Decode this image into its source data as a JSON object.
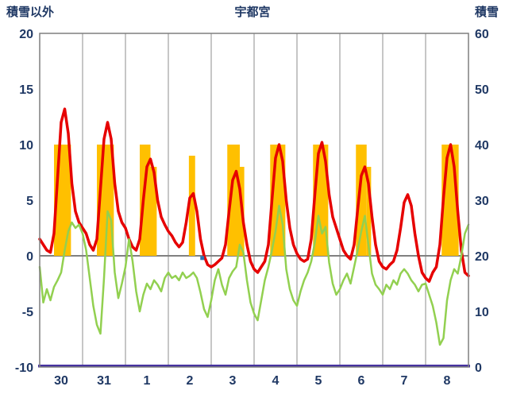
{
  "header": {
    "left_axis_title": "積雪以外",
    "title": "宇都宮",
    "right_axis_title": "積雪"
  },
  "colors": {
    "bar": "#FFC000",
    "temperature_line": "#E60000",
    "green_line": "#92D050",
    "snow_line": "#4733A0",
    "marker": "#2E75B6",
    "grid": "#8C8C8C",
    "zero_line": "#808080",
    "border": "#7F7F7F",
    "axis_text": "#1F3864",
    "background": "#FFFFFF"
  },
  "chart_data": {
    "type": "line",
    "title": "宇都宮",
    "left_axis": {
      "label": "積雪以外",
      "min": -10,
      "max": 20,
      "ticks": [
        20,
        15,
        10,
        5,
        0,
        -5,
        -10
      ]
    },
    "right_axis": {
      "label": "積雪",
      "min": 0,
      "max": 60,
      "ticks": [
        60,
        50,
        40,
        30,
        20,
        10,
        0
      ]
    },
    "x_axis": {
      "tick_labels": [
        "30",
        "31",
        "1",
        "2",
        "3",
        "4",
        "5",
        "6",
        "7",
        "8"
      ],
      "days": 10,
      "grid": "vertical-day-lines"
    },
    "legend": "none",
    "series": [
      {
        "id": "sunshine-bars",
        "type": "bar",
        "axis": "left",
        "color": "#FFC000",
        "segments": [
          {
            "day": 0,
            "start_hour": 8,
            "end_hour": 17.5,
            "value": 10
          },
          {
            "day": 1,
            "start_hour": 8,
            "end_hour": 17.5,
            "value": 10
          },
          {
            "day": 2,
            "start_hour": 8,
            "end_hour": 14,
            "value": 10
          },
          {
            "day": 2,
            "start_hour": 14,
            "end_hour": 17.5,
            "value": 8
          },
          {
            "day": 3,
            "start_hour": 11.5,
            "end_hour": 15,
            "value": 9
          },
          {
            "day": 4,
            "start_hour": 9,
            "end_hour": 16,
            "value": 10
          },
          {
            "day": 4,
            "start_hour": 16,
            "end_hour": 18.5,
            "value": 8
          },
          {
            "day": 5,
            "start_hour": 9,
            "end_hour": 17.5,
            "value": 10
          },
          {
            "day": 6,
            "start_hour": 9,
            "end_hour": 17.5,
            "value": 10
          },
          {
            "day": 7,
            "start_hour": 9,
            "end_hour": 15,
            "value": 10
          },
          {
            "day": 7,
            "start_hour": 15,
            "end_hour": 17.5,
            "value": 8
          },
          {
            "day": 9,
            "start_hour": 9,
            "end_hour": 18.5,
            "value": 10
          }
        ]
      },
      {
        "id": "temperature-line",
        "type": "line",
        "axis": "left",
        "color": "#E60000",
        "width": 3.5,
        "step_hours": 2,
        "values": [
          1.5,
          1.0,
          0.5,
          0.3,
          2.0,
          7.0,
          12.0,
          13.2,
          11.0,
          6.5,
          4.0,
          3.0,
          2.5,
          2.0,
          1.0,
          0.5,
          1.5,
          6.0,
          10.5,
          12.0,
          10.5,
          6.5,
          4.0,
          3.0,
          2.5,
          1.5,
          0.8,
          0.5,
          1.5,
          5.0,
          8.0,
          8.7,
          7.5,
          5.0,
          3.5,
          2.8,
          2.2,
          1.8,
          1.2,
          0.8,
          1.2,
          3.0,
          5.2,
          5.6,
          4.0,
          1.5,
          0.0,
          -0.8,
          -1.0,
          -0.8,
          -0.5,
          -0.2,
          1.0,
          4.0,
          6.8,
          7.6,
          6.0,
          3.0,
          1.0,
          -0.5,
          -1.2,
          -1.5,
          -1.0,
          -0.5,
          1.0,
          5.0,
          8.8,
          10.0,
          8.5,
          5.0,
          2.5,
          1.0,
          0.2,
          -0.3,
          -0.5,
          -0.3,
          1.5,
          5.5,
          9.2,
          10.2,
          8.5,
          5.5,
          3.5,
          2.5,
          1.5,
          0.5,
          0.0,
          -0.3,
          1.0,
          4.2,
          7.2,
          8.0,
          6.5,
          3.5,
          1.0,
          -0.5,
          -1.0,
          -1.2,
          -0.8,
          -0.5,
          0.5,
          2.5,
          4.8,
          5.5,
          4.5,
          2.0,
          0.0,
          -1.5,
          -2.0,
          -2.3,
          -1.5,
          -1.0,
          1.0,
          5.2,
          8.8,
          10.0,
          8.0,
          4.0,
          0.5,
          -1.5,
          -1.8
        ]
      },
      {
        "id": "green-line",
        "type": "line",
        "axis": "left",
        "color": "#92D050",
        "width": 2.5,
        "step_hours": 2,
        "values": [
          -1.0,
          -4.2,
          -3.0,
          -4.0,
          -2.8,
          -2.2,
          -1.5,
          0.5,
          2.2,
          3.0,
          2.5,
          2.8,
          2.0,
          0.5,
          -2.0,
          -4.5,
          -6.2,
          -7.0,
          -2.0,
          4.0,
          3.2,
          -1.5,
          -3.8,
          -2.5,
          -1.0,
          1.5,
          -0.5,
          -3.2,
          -5.0,
          -3.5,
          -2.5,
          -3.0,
          -2.2,
          -2.6,
          -3.2,
          -2.0,
          -1.5,
          -2.0,
          -1.8,
          -2.2,
          -1.5,
          -2.0,
          -1.8,
          -1.5,
          -2.0,
          -3.3,
          -4.8,
          -5.5,
          -4.0,
          -2.2,
          -1.2,
          -2.6,
          -3.5,
          -2.0,
          -1.4,
          -1.0,
          1.0,
          0.3,
          -2.2,
          -4.2,
          -5.2,
          -5.8,
          -4.0,
          -2.2,
          -1.0,
          0.5,
          2.2,
          4.5,
          2.8,
          -1.2,
          -3.0,
          -4.0,
          -4.5,
          -3.2,
          -2.2,
          -1.5,
          -0.5,
          1.2,
          3.6,
          2.0,
          2.6,
          -0.6,
          -2.5,
          -3.5,
          -3.0,
          -2.2,
          -1.6,
          -2.5,
          -1.0,
          0.5,
          2.2,
          3.6,
          1.0,
          -1.6,
          -2.6,
          -3.0,
          -3.5,
          -2.6,
          -3.0,
          -2.2,
          -2.6,
          -1.6,
          -1.2,
          -1.6,
          -2.2,
          -2.6,
          -3.2,
          -2.6,
          -2.5,
          -3.5,
          -4.5,
          -6.0,
          -8.0,
          -7.4,
          -4.0,
          -2.2,
          -1.2,
          -1.6,
          0.0,
          2.0,
          2.8
        ]
      },
      {
        "id": "snow-depth-line",
        "type": "line",
        "axis": "right",
        "color": "#4733A0",
        "width": 3.5,
        "constant": 0
      },
      {
        "id": "blue-marker",
        "type": "point",
        "axis": "left",
        "color": "#2E75B6",
        "day": 3,
        "hour": 19,
        "value": -0.2,
        "size": 5
      }
    ]
  }
}
